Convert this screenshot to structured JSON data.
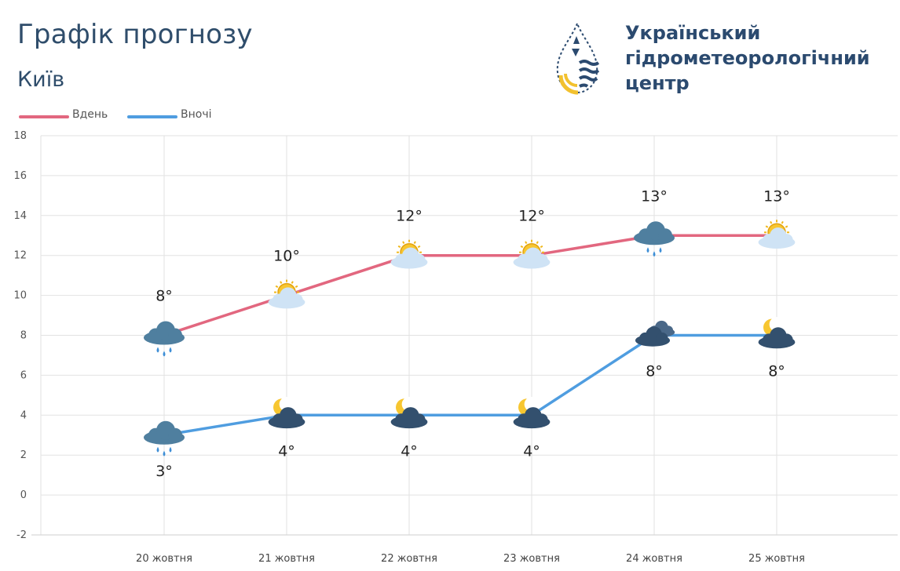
{
  "header": {
    "title": "Графік прогнозу",
    "subtitle": "Київ"
  },
  "org": {
    "name_lines": [
      "Український",
      "гідрометеорологічний",
      "центр"
    ],
    "logo_icon": "water-drop-sun-logo-icon"
  },
  "colors": {
    "day": "#e2677f",
    "night": "#4f9de0",
    "grid": "#e2e2e2",
    "title": "#2f4d6b"
  },
  "chart_data": {
    "type": "line",
    "title": "Графік прогнозу",
    "subtitle": "Київ",
    "categories": [
      "20 жовтня",
      "21 жовтня",
      "22 жовтня",
      "23 жовтня",
      "24 жовтня",
      "25 жовтня"
    ],
    "series": [
      {
        "name": "Вдень",
        "values": [
          8,
          10,
          12,
          12,
          13,
          13
        ],
        "labels": [
          "8°",
          "10°",
          "12°",
          "12°",
          "13°",
          "13°"
        ],
        "icons": [
          "rain-cloud-icon",
          "sun-behind-cloud-icon",
          "sun-behind-cloud-icon",
          "sun-behind-cloud-icon",
          "rain-cloud-icon",
          "sun-behind-cloud-icon"
        ]
      },
      {
        "name": "Вночі",
        "values": [
          3,
          4,
          4,
          4,
          8,
          8
        ],
        "labels": [
          "3°",
          "4°",
          "4°",
          "4°",
          "8°",
          "8°"
        ],
        "icons": [
          "rain-cloud-icon",
          "moon-cloud-icon",
          "moon-cloud-icon",
          "moon-cloud-icon",
          "dark-clouds-icon",
          "moon-cloud-icon"
        ]
      }
    ],
    "ylim": [
      -2,
      18
    ],
    "yticks": [
      -2,
      0,
      2,
      4,
      6,
      8,
      10,
      12,
      14,
      16,
      18
    ],
    "grid": true,
    "legend": "top-left"
  }
}
